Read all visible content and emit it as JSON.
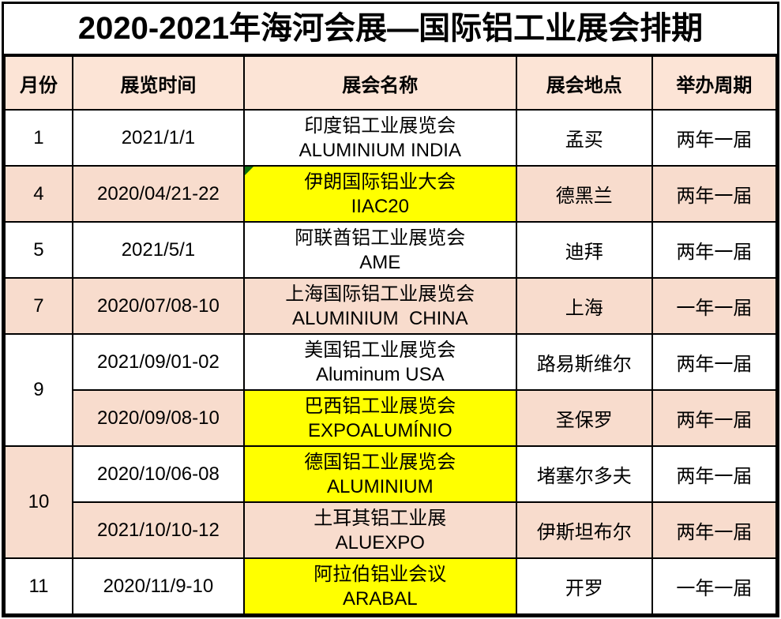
{
  "title": "2020-2021年海河会展—国际铝工业展会排期",
  "table": {
    "columns": [
      "月份",
      "展览时间",
      "展会名称",
      "展会地点",
      "举办周期"
    ],
    "rows": [
      {
        "month": "1",
        "month_rowspan": 1,
        "month_bg": "white",
        "cells": [
          {
            "text": "2021/1/1",
            "bg": "white"
          },
          {
            "text": "印度铝工业展览会\nALUMINIUM INDIA",
            "bg": "white"
          },
          {
            "text": "孟买",
            "bg": "white"
          },
          {
            "text": "两年一届",
            "bg": "white"
          }
        ]
      },
      {
        "month": "4",
        "month_rowspan": 1,
        "month_bg": "peach",
        "cells": [
          {
            "text": "2020/04/21-22",
            "bg": "peach"
          },
          {
            "text": "伊朗国际铝业大会\nIIAC20",
            "bg": "yellow",
            "flag": true
          },
          {
            "text": "德黑兰",
            "bg": "peach"
          },
          {
            "text": "两年一届",
            "bg": "peach"
          }
        ]
      },
      {
        "month": "5",
        "month_rowspan": 1,
        "month_bg": "white",
        "cells": [
          {
            "text": "2021/5/1",
            "bg": "white"
          },
          {
            "text": "阿联酋铝工业展览会\nAME",
            "bg": "white"
          },
          {
            "text": "迪拜",
            "bg": "white"
          },
          {
            "text": "两年一届",
            "bg": "white"
          }
        ]
      },
      {
        "month": "7",
        "month_rowspan": 1,
        "month_bg": "peach",
        "cells": [
          {
            "text": "2020/07/08-10",
            "bg": "peach"
          },
          {
            "text": "上海国际铝工业展览会\nALUMINIUM  CHINA",
            "bg": "peach"
          },
          {
            "text": "上海",
            "bg": "peach"
          },
          {
            "text": "一年一届",
            "bg": "peach"
          }
        ]
      },
      {
        "month": "9",
        "month_rowspan": 2,
        "month_bg": "white",
        "cells": [
          {
            "text": "2021/09/01-02",
            "bg": "white"
          },
          {
            "text": "美国铝工业展览会\nAluminum USA",
            "bg": "white"
          },
          {
            "text": "路易斯维尔",
            "bg": "white"
          },
          {
            "text": "两年一届",
            "bg": "white"
          }
        ]
      },
      {
        "cells": [
          {
            "text": "2020/09/08-10",
            "bg": "peach"
          },
          {
            "text": "巴西铝工业展览会\nEXPOALUMÍNIO",
            "bg": "yellow"
          },
          {
            "text": "圣保罗",
            "bg": "peach"
          },
          {
            "text": "两年一届",
            "bg": "peach"
          }
        ]
      },
      {
        "month": "10",
        "month_rowspan": 2,
        "month_bg": "peach",
        "cells": [
          {
            "text": "2020/10/06-08",
            "bg": "white"
          },
          {
            "text": "德国铝工业展览会\nALUMINIUM",
            "bg": "yellow"
          },
          {
            "text": "堵塞尔多夫",
            "bg": "white"
          },
          {
            "text": "两年一届",
            "bg": "white"
          }
        ]
      },
      {
        "cells": [
          {
            "text": "2021/10/10-12",
            "bg": "peach"
          },
          {
            "text": "土耳其铝工业展\nALUEXPO",
            "bg": "peach"
          },
          {
            "text": "伊斯坦布尔",
            "bg": "peach"
          },
          {
            "text": "两年一届",
            "bg": "peach"
          }
        ]
      },
      {
        "month": "11",
        "month_rowspan": 1,
        "month_bg": "white",
        "cells": [
          {
            "text": "2020/11/9-10",
            "bg": "white"
          },
          {
            "text": "阿拉伯铝业会议\nARABAL",
            "bg": "yellow"
          },
          {
            "text": "开罗",
            "bg": "white"
          },
          {
            "text": "一年一届",
            "bg": "white"
          }
        ]
      }
    ]
  },
  "colors": {
    "title_text": "#000000",
    "border": "#000000",
    "header_bg": "#fce4d6",
    "row_bg": "#f8dccd",
    "highlight_bg": "#ffff00",
    "flag_green": "#0e6f0e"
  }
}
